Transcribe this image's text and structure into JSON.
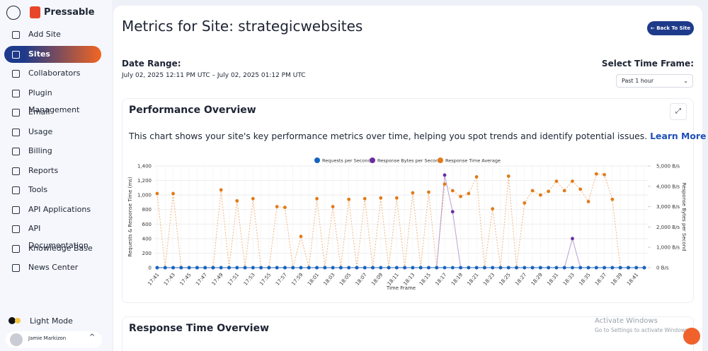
{
  "sidebar": {
    "brand": "Pressable",
    "menu": [
      "Add Site",
      "Sites",
      "Collaborators",
      "Plugin Management",
      "Email",
      "Usage",
      "Billing",
      "Reports",
      "Tools",
      "API Applications",
      "API Documentation",
      "Knowledge Base",
      "News Center"
    ],
    "mode": "Light Mode",
    "user": "Jamie Markizon"
  },
  "header": {
    "title": "Metrics for Site: strategicwebsites",
    "button": "Back To Site"
  },
  "date_range": {
    "label": "Date Range:",
    "value": "July 02, 2025 12:11 PM UTC – July 02, 2025 01:12 PM UTC"
  },
  "time_frame": {
    "label": "Select Time Frame:",
    "value": "Past 1 hour"
  },
  "panel": {
    "title": "Performance Overview",
    "description": "This chart shows your site's key performance metrics over time, helping you spot trends and identify potential issues.",
    "link": "Learn More"
  },
  "chart_data": {
    "type": "line",
    "xlabel": "Time Frame",
    "ylabel": "Requests & Response Time (ms)",
    "y2label": "Response Bytes per Second",
    "categories": [
      "17:41",
      null,
      "17:43",
      null,
      "17:45",
      null,
      "17:47",
      null,
      "17:49",
      null,
      "17:51",
      null,
      "17:53",
      null,
      "17:55",
      null,
      "17:57",
      null,
      "17:59",
      null,
      "18:01",
      null,
      "18:03",
      null,
      "18:05",
      null,
      "18:07",
      null,
      "18:09",
      null,
      "18:11",
      null,
      "18:13",
      null,
      "18:15",
      null,
      "18:17",
      null,
      "18:19",
      null,
      "18:21",
      null,
      "18:23",
      null,
      "18:25",
      null,
      "18:27",
      null,
      "18:29",
      null,
      "18:31",
      null,
      "18:33",
      null,
      "18:35",
      null,
      "18:37",
      null,
      "18:39",
      null,
      "18:41",
      null
    ],
    "ylim": [
      0,
      1400
    ],
    "yticks": [
      0,
      200,
      400,
      600,
      800,
      {
        "value": 1000,
        "label": "1,000"
      },
      {
        "value": 1200,
        "label": "1,200"
      },
      {
        "value": 1400,
        "label": "1,400"
      }
    ],
    "y2lim": [
      0,
      5000
    ],
    "y2ticks": [
      {
        "value": 0,
        "label": "0 B/s"
      },
      {
        "value": 1000,
        "label": "1,000 B/s"
      },
      {
        "value": 2000,
        "label": "2,000 B/s"
      },
      {
        "value": 3000,
        "label": "3,000 B/s"
      },
      {
        "value": 4000,
        "label": "4,000 B/s"
      },
      {
        "value": 5000,
        "label": "5,000 B/s"
      }
    ],
    "grid": true,
    "legend": "top",
    "series": [
      {
        "name": "Requests per Second",
        "color": "#1565c0",
        "values": [
          0,
          0,
          0,
          0,
          0,
          0,
          0,
          0,
          0,
          0,
          0,
          0,
          0,
          0,
          0,
          0,
          0,
          0,
          0,
          0,
          0,
          0,
          0,
          0,
          0,
          0,
          0,
          0,
          0,
          0,
          0,
          0,
          0,
          0,
          0,
          0,
          0,
          0,
          0,
          0,
          0,
          0,
          0,
          0,
          0,
          0,
          0,
          0,
          0,
          0,
          0,
          0,
          0,
          0,
          0,
          0,
          0,
          0,
          0,
          0,
          0,
          0
        ]
      },
      {
        "name": "Response Bytes per Second",
        "color": "#6a2c9e",
        "axis": "y2",
        "values": [
          0,
          0,
          0,
          0,
          0,
          0,
          0,
          0,
          0,
          0,
          0,
          0,
          0,
          0,
          0,
          0,
          0,
          0,
          0,
          0,
          0,
          0,
          0,
          0,
          0,
          0,
          0,
          0,
          0,
          0,
          0,
          0,
          0,
          0,
          0,
          0,
          4550,
          2750,
          0,
          0,
          0,
          0,
          0,
          0,
          0,
          0,
          0,
          0,
          0,
          0,
          0,
          0,
          1430,
          0,
          0,
          0,
          0,
          0,
          0,
          0,
          0,
          0
        ]
      },
      {
        "name": "Response Time Average",
        "color": "#e07b1a",
        "values": [
          1020,
          0,
          1020,
          0,
          0,
          0,
          0,
          0,
          1070,
          0,
          920,
          0,
          950,
          0,
          0,
          840,
          830,
          0,
          430,
          0,
          950,
          0,
          840,
          0,
          940,
          0,
          950,
          0,
          960,
          0,
          960,
          0,
          1030,
          0,
          1040,
          0,
          1150,
          1060,
          980,
          1020,
          1250,
          0,
          810,
          0,
          1260,
          0,
          890,
          1060,
          1000,
          1050,
          1190,
          1060,
          1190,
          1080,
          910,
          1290,
          1280,
          940,
          0,
          0,
          0,
          0
        ]
      }
    ]
  },
  "next_panel": {
    "title": "Response Time Overview"
  },
  "watermark": {
    "title": "Activate Windows",
    "subtitle": "Go to Settings to activate Windows."
  }
}
